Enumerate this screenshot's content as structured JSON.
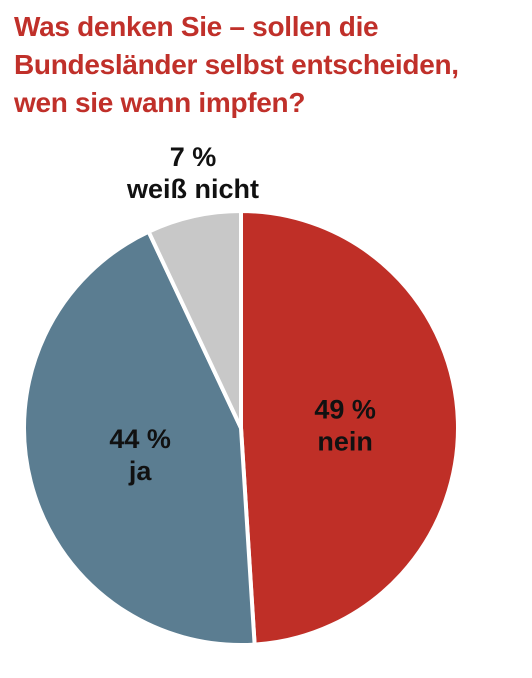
{
  "title": "Was denken Sie – sollen die Bundesländer selbst entscheiden, wen sie wann impfen?",
  "chart_data": {
    "type": "pie",
    "title": "Was denken Sie – sollen die Bundesländer selbst entscheiden, wen sie wann impfen?",
    "unit": "%",
    "slices": [
      {
        "label": "nein",
        "value": 49,
        "value_text": "49 %",
        "color": "#bf2f27"
      },
      {
        "label": "ja",
        "value": 44,
        "value_text": "44 %",
        "color": "#5b7d91"
      },
      {
        "label": "weiß nicht",
        "value": 7,
        "value_text": "7 %",
        "color": "#c8c8c8"
      }
    ],
    "start": "top",
    "direction": "clockwise",
    "separator_color": "#ffffff"
  }
}
